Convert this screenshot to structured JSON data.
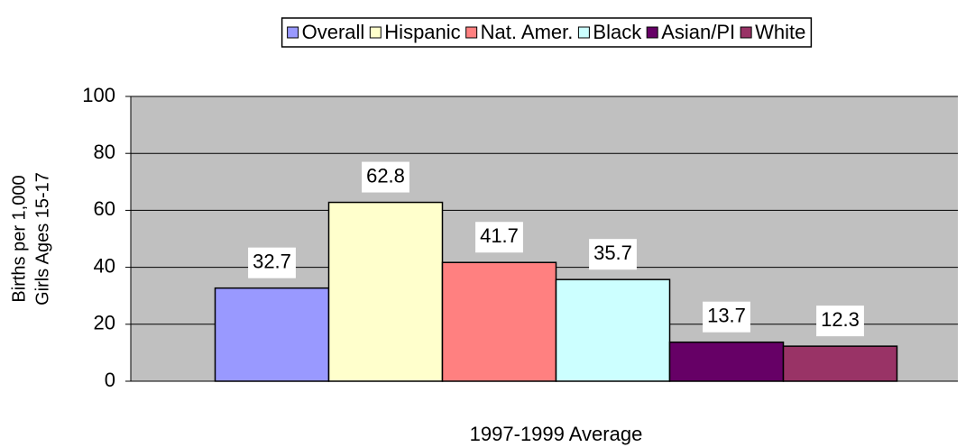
{
  "chart_data": {
    "type": "bar",
    "ylabel": [
      "Births per 1,000",
      "Girls Ages 15-17"
    ],
    "categories": [
      "1997-1999 Average"
    ],
    "series": [
      {
        "name": "Overall",
        "color": "#9999ff",
        "values": [
          32.7
        ]
      },
      {
        "name": "Hispanic",
        "color": "#ffffcc",
        "values": [
          62.8
        ]
      },
      {
        "name": "Nat. Amer.",
        "color": "#ff8080",
        "values": [
          41.7
        ]
      },
      {
        "name": "Black",
        "color": "#ccffff",
        "values": [
          35.7
        ]
      },
      {
        "name": "Asian/PI",
        "color": "#660066",
        "values": [
          13.7
        ]
      },
      {
        "name": "White",
        "color": "#993366",
        "values": [
          12.3
        ]
      }
    ],
    "ylim": [
      0,
      100
    ],
    "yticks": [
      0,
      20,
      40,
      60,
      80,
      100
    ],
    "grid": true,
    "legend": "top",
    "plot_background": "#c0c0c0"
  }
}
